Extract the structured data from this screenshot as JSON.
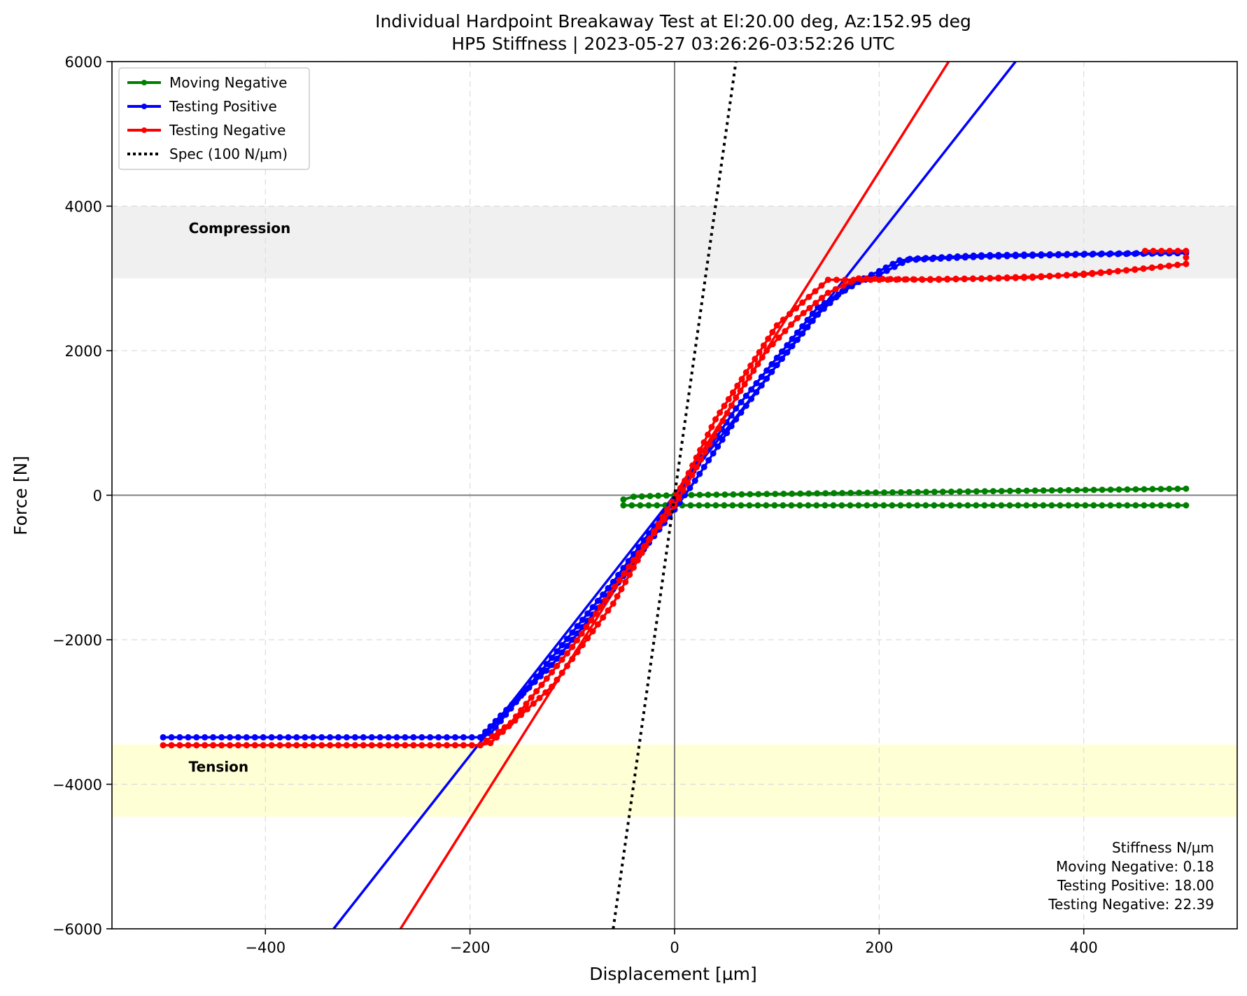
{
  "chart_data": {
    "type": "line",
    "title": "Individual Hardpoint Breakaway Test at El:20.00 deg, Az:152.95 deg",
    "subtitle": "HP5 Stiffness | 2023-05-27 03:26:26-03:52:26 UTC",
    "xlabel": "Displacement [µm]",
    "ylabel": "Force [N]",
    "xlim": [
      -550,
      550
    ],
    "ylim": [
      -6000,
      6000
    ],
    "xticks": [
      -400,
      -200,
      0,
      200,
      400
    ],
    "yticks": [
      -6000,
      -4000,
      -2000,
      0,
      2000,
      4000,
      6000
    ],
    "xtick_labels": [
      "−400",
      "−200",
      "0",
      "200",
      "400"
    ],
    "ytick_labels": [
      "−6000",
      "−4000",
      "−2000",
      "0",
      "2000",
      "4000",
      "6000"
    ],
    "grid": true,
    "legend_position": "top-left",
    "bands": [
      {
        "label": "Compression",
        "y_range": [
          3000,
          4000
        ],
        "color": "#f0f0f0"
      },
      {
        "label": "Tension",
        "y_range": [
          -4450,
          -3450
        ],
        "color": "#ffffd6"
      }
    ],
    "series": [
      {
        "name": "Moving Negative",
        "color": "#008000",
        "style": "line-markers",
        "points": [
          [
            500,
            -140
          ],
          [
            -50,
            -140
          ],
          [
            -50,
            -60
          ],
          [
            -40,
            -20
          ],
          [
            0,
            0
          ],
          [
            500,
            90
          ]
        ]
      },
      {
        "name": "Testing Positive",
        "color": "#0000ff",
        "style": "line-markers",
        "points": [
          [
            -500,
            -3350
          ],
          [
            -190,
            -3350
          ],
          [
            -170,
            -3050
          ],
          [
            -120,
            -2350
          ],
          [
            -60,
            -1300
          ],
          [
            0,
            -200
          ],
          [
            20,
            200
          ],
          [
            60,
            1050
          ],
          [
            100,
            1800
          ],
          [
            140,
            2500
          ],
          [
            170,
            2900
          ],
          [
            200,
            3100
          ],
          [
            220,
            3250
          ],
          [
            300,
            3300
          ],
          [
            400,
            3330
          ],
          [
            500,
            3350
          ],
          [
            460,
            3350
          ],
          [
            350,
            3330
          ],
          [
            300,
            3320
          ],
          [
            230,
            3270
          ],
          [
            200,
            3050
          ],
          [
            180,
            2950
          ],
          [
            140,
            2600
          ],
          [
            100,
            1900
          ],
          [
            60,
            1200
          ],
          [
            0,
            -50
          ],
          [
            -60,
            -1200
          ],
          [
            -120,
            -2250
          ],
          [
            -180,
            -3300
          ],
          [
            -190,
            -3350
          ]
        ]
      },
      {
        "name": "Testing Negative",
        "color": "#ff0000",
        "style": "line-markers",
        "points": [
          [
            460,
            3380
          ],
          [
            500,
            3380
          ],
          [
            500,
            3200
          ],
          [
            400,
            3050
          ],
          [
            300,
            3000
          ],
          [
            200,
            2980
          ],
          [
            150,
            2980
          ],
          [
            100,
            2350
          ],
          [
            70,
            1700
          ],
          [
            40,
            1050
          ],
          [
            10,
            200
          ],
          [
            -20,
            -500
          ],
          [
            -60,
            -1500
          ],
          [
            -120,
            -2650
          ],
          [
            -180,
            -3430
          ],
          [
            -190,
            -3460
          ],
          [
            -500,
            -3460
          ],
          [
            -190,
            -3460
          ],
          [
            -160,
            -3150
          ],
          [
            -100,
            -2100
          ],
          [
            -40,
            -900
          ],
          [
            0,
            -150
          ],
          [
            30,
            600
          ],
          [
            60,
            1350
          ],
          [
            90,
            2000
          ],
          [
            120,
            2450
          ],
          [
            150,
            2800
          ],
          [
            180,
            3000
          ],
          [
            250,
            2980
          ],
          [
            350,
            3010
          ],
          [
            450,
            3120
          ],
          [
            500,
            3200
          ]
        ]
      },
      {
        "name": "Spec (100 N/µm)",
        "color": "#000000",
        "style": "dotted",
        "points": [
          [
            -60,
            -6000
          ],
          [
            60,
            6000
          ]
        ]
      }
    ],
    "fit_lines": [
      {
        "color": "#0000ff",
        "slope": 18.0,
        "intercept": 0
      },
      {
        "color": "#ff0000",
        "slope": 22.39,
        "intercept": 0
      },
      {
        "color": "#008000",
        "slope": 0.18,
        "intercept": 0
      }
    ],
    "stiffness_box": {
      "heading": "Stiffness N/µm",
      "lines": [
        "Moving Negative: 0.18",
        "Testing Positive: 18.00",
        "Testing Negative: 22.39"
      ]
    }
  }
}
